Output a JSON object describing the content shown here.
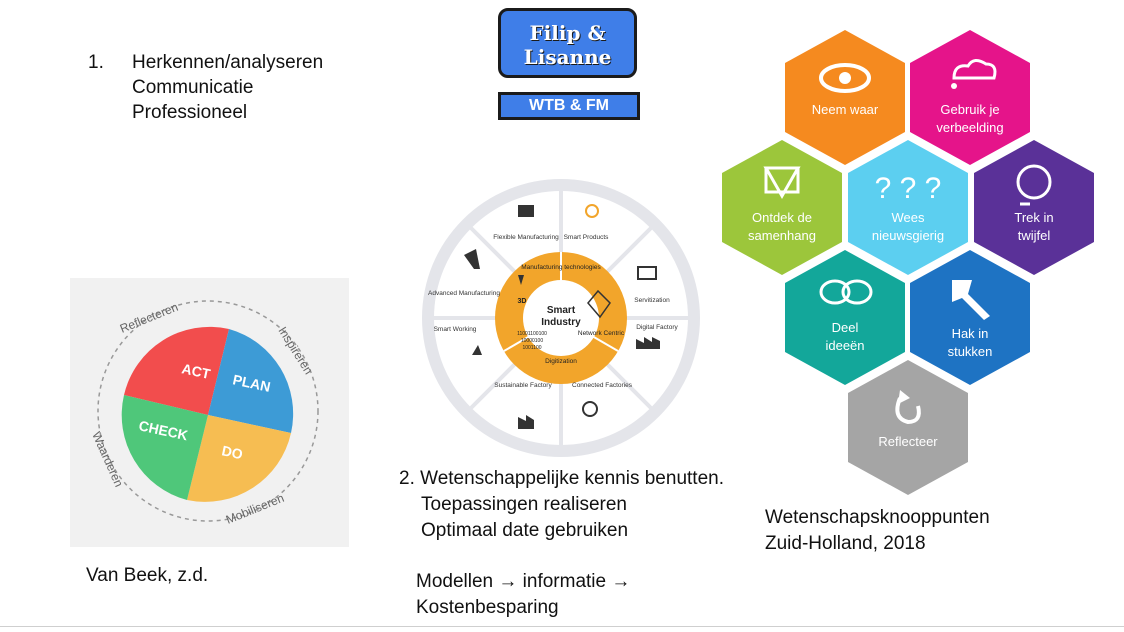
{
  "left_list": {
    "number": "1.",
    "lines": [
      "Herkennen/analyseren",
      "Communicatie",
      "Professioneel"
    ]
  },
  "title_box": {
    "names": [
      "Filip &",
      "Lisanne"
    ],
    "subtitle": "WTB & FM"
  },
  "pdca": {
    "segments": [
      "ACT",
      "PLAN",
      "DO",
      "CHECK"
    ],
    "ring_labels": [
      "Reflecteren",
      "Inspireren",
      "Mobiliseren",
      "Waarderen"
    ],
    "colors": {
      "act": "#f24d4d",
      "plan": "#3d9bd6",
      "do": "#f6bd52",
      "check": "#4fc77a"
    },
    "caption": "Van Beek, z.d."
  },
  "smart_industry": {
    "center_title": [
      "Smart",
      "Industry"
    ],
    "inner": [
      "Manufacturing technologies",
      "Network Centric",
      "Digitization"
    ],
    "inner_extra": [
      "3D"
    ],
    "binary": [
      "11001100100",
      "10000100",
      "1001100"
    ],
    "outer": [
      "Flexible Manufacturing",
      "Smart Products",
      "Servitization",
      "Digital Factory",
      "Connected Factories",
      "Sustainable Factory",
      "Smart Working",
      "Advanced Manufacturing"
    ],
    "caption_lines": [
      "2. Wetenschappelijke kennis benutten.",
      "Toepassingen realiseren",
      "Optimaal date gebruiken"
    ],
    "footer_lines": [
      "Modellen → informatie →",
      "Kostenbesparing"
    ]
  },
  "hexagons": {
    "items": [
      {
        "label": [
          "Neem waar"
        ],
        "color": "#f58a1f",
        "icon": "eye-icon"
      },
      {
        "label": [
          "Gebruik je",
          "verbeelding"
        ],
        "color": "#e5148a",
        "icon": "thought-cloud-icon"
      },
      {
        "label": [
          "Ontdek de",
          "samenhang"
        ],
        "color": "#9cc63b",
        "icon": "network-icon"
      },
      {
        "label": [
          "Wees",
          "nieuwsgierig"
        ],
        "color": "#5ccff0",
        "icon": "question-marks-icon"
      },
      {
        "label": [
          "Trek in",
          "twijfel"
        ],
        "color": "#5a3198",
        "icon": "doubt-face-icon"
      },
      {
        "label": [
          "Deel",
          "ideeën"
        ],
        "color": "#13a79a",
        "icon": "speech-bubbles-icon"
      },
      {
        "label": [
          "Hak in",
          "stukken"
        ],
        "color": "#1e73c3",
        "icon": "axe-icon"
      },
      {
        "label": [
          "Reflecteer"
        ],
        "color": "#a5a5a5",
        "icon": "refresh-arrow-icon"
      }
    ],
    "caption_lines": [
      "Wetenschapsknooppunten",
      "Zuid-Holland, 2018"
    ]
  }
}
